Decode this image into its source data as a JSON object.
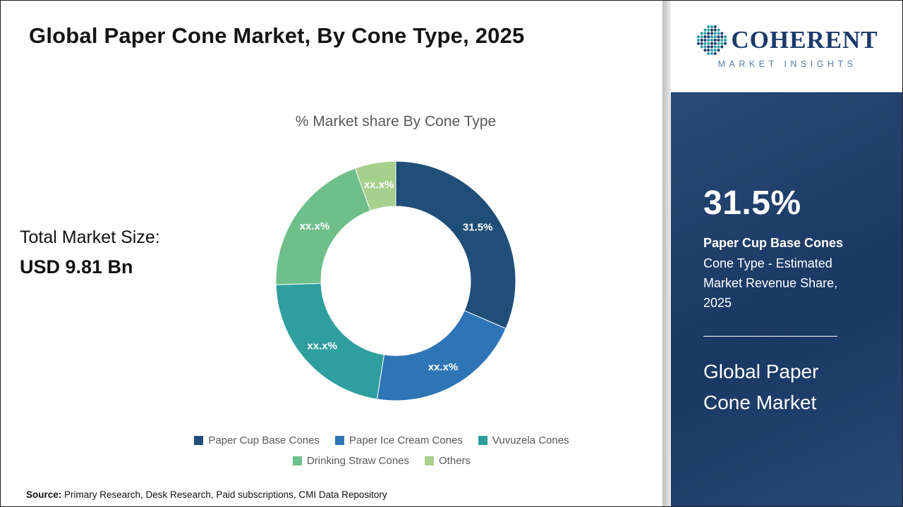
{
  "header": {
    "title": "Global Paper Cone Market, By Cone Type, 2025"
  },
  "logo": {
    "text": "COHERENT",
    "tagline": "MARKET INSIGHTS",
    "globe_colors": [
      "#2e9ca6",
      "#1b3a6b"
    ]
  },
  "main": {
    "chart_title": "% Market share By Cone Type",
    "total_label": "Total Market Size:",
    "total_value": "USD 9.81 Bn"
  },
  "chart_data": {
    "type": "pie",
    "donut": true,
    "title": "% Market share By Cone Type",
    "categories": [
      "Paper Cup Base Cones",
      "Paper Ice Cream Cones",
      "Vuvuzela Cones",
      "Drinking Straw Cones",
      "Others"
    ],
    "values": [
      31.5,
      21,
      22,
      20,
      5.5
    ],
    "labels": [
      "31.5%",
      "xx.x%",
      "xx.x%",
      "xx.x%",
      "xx.x%"
    ],
    "colors": [
      "#1f4e79",
      "#2e75b6",
      "#2f9e9e",
      "#6fbf8b",
      "#a8d08d"
    ],
    "legend_position": "bottom",
    "start_angle_deg": 0
  },
  "sidebar": {
    "stat_value": "31.5%",
    "stat_title": "Paper Cup Base Cones",
    "stat_desc": "Cone Type - Estimated Market Revenue Share, 2025",
    "market_name": "Global Paper Cone Market",
    "bg_color": "#1c3e6e"
  },
  "footer": {
    "source_label": "Source:",
    "source_text": " Primary Research, Desk Research, Paid subscriptions, CMI Data Repository"
  }
}
